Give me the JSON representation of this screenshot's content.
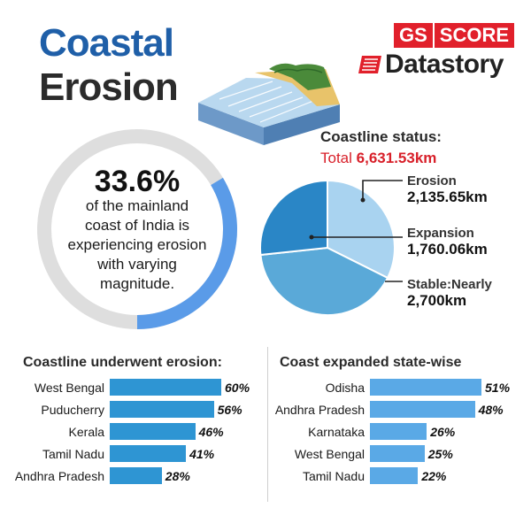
{
  "title": {
    "line1": "Coastal",
    "line2": "Erosion"
  },
  "brand": {
    "gs": "GS",
    "score": "SCORE",
    "datastory": "Datastory"
  },
  "highlight": {
    "value_label": "33.6%",
    "fraction": 0.336,
    "text": [
      "of the mainland",
      "coast of India is",
      "experiencing erosion",
      "with varying",
      "magnitude."
    ]
  },
  "status": {
    "title": "Coastline status:",
    "total_prefix": "Total",
    "total_value": "6,631.53km"
  },
  "colors": {
    "title_blue": "#1f5fa8",
    "brand_red": "#e1202b",
    "bar_blue": "#2e95d3",
    "bar_light_blue": "#5aa9e6",
    "pie_light": "#a9d3f0",
    "pie_mid": "#5aa9d8",
    "pie_dark": "#2a86c6",
    "donut_track": "#dedede",
    "donut_arc": "#5a9be8"
  },
  "chart_data": [
    {
      "type": "pie",
      "slices": [
        {
          "label": "Erosion",
          "value": 2135.65,
          "value_label": "2,135.65km"
        },
        {
          "label": "Expansion",
          "value": 1760.06,
          "value_label": "1,760.06km"
        },
        {
          "label": "Stable:Nearly",
          "value": 2700,
          "value_label": "2,700km"
        }
      ]
    },
    {
      "type": "bar",
      "orientation": "horizontal",
      "title": "Coastline underwent erosion:",
      "categories": [
        "West Bengal",
        "Puducherry",
        "Kerala",
        "Tamil Nadu",
        "Andhra Pradesh"
      ],
      "values": [
        60,
        56,
        46,
        41,
        28
      ],
      "value_labels": [
        "60%",
        "56%",
        "46%",
        "41%",
        "28%"
      ],
      "xlim": [
        0,
        60
      ]
    },
    {
      "type": "bar",
      "orientation": "horizontal",
      "title": "Coast expanded state-wise",
      "categories": [
        "Odisha",
        "Andhra Pradesh",
        "Karnataka",
        "West Bengal",
        "Tamil Nadu"
      ],
      "values": [
        51,
        48,
        26,
        25,
        22
      ],
      "value_labels": [
        "51%",
        "48%",
        "26%",
        "25%",
        "22%"
      ],
      "xlim": [
        0,
        51
      ]
    }
  ]
}
